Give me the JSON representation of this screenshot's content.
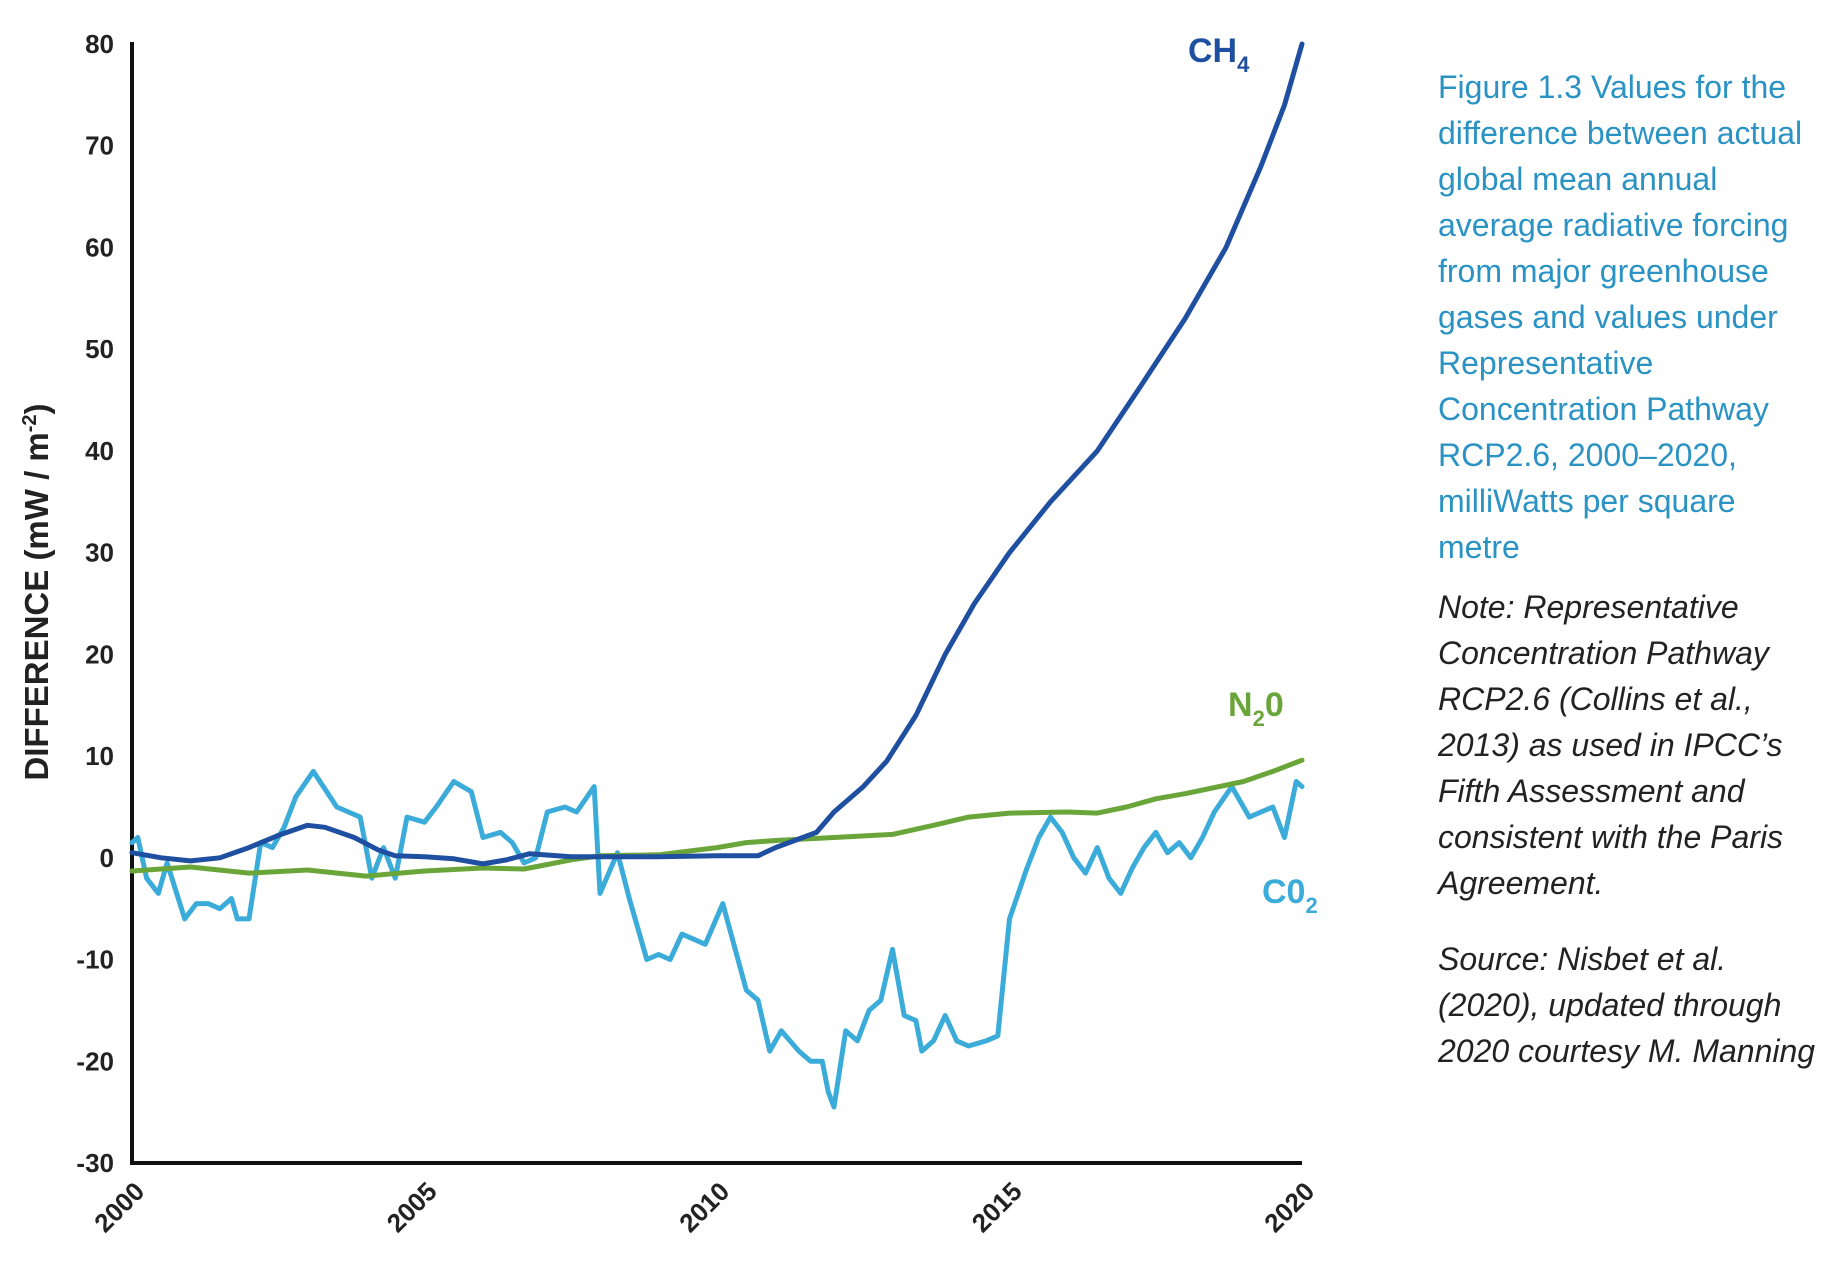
{
  "colors": {
    "ch4": "#1f4fa0",
    "n2o": "#6aa539",
    "co2": "#3bacd9",
    "caption": "#2a93c4",
    "axis": "#111111"
  },
  "caption": {
    "title": "Figure 1.3 Values for the difference between actual global mean annual average radiative forcing from major greenhouse gases and values under Representative Concentration Pathway RCP2.6, 2000–2020, milliWatts per square metre",
    "note": "Note: Representative Concentration Pathway RCP2.6 (Collins et al., 2013) as used in IPCC’s Fifth Assessment and consistent with the Paris Agreement.",
    "source": "Source: Nisbet et al. (2020), updated through 2020 courtesy M. Manning"
  },
  "chart_data": {
    "type": "line",
    "ylabel": "DIFFERENCE (mW / m",
    "ylabel_sup": "-2",
    "ylabel_close": ")",
    "xlim": [
      2000,
      2020
    ],
    "ylim": [
      -30,
      80
    ],
    "xticks": [
      "2000",
      "2005",
      "2010",
      "2015",
      "2020"
    ],
    "yticks": [
      "80",
      "70",
      "60",
      "50",
      "40",
      "30",
      "20",
      "10",
      "0",
      "-10",
      "-20",
      "-30"
    ],
    "grid": false,
    "series": [
      {
        "name": "CH",
        "sub": "4",
        "color": "#1f4fa0",
        "points": [
          [
            2000,
            0.5
          ],
          [
            2000.5,
            0
          ],
          [
            2001,
            -0.3
          ],
          [
            2001.5,
            0
          ],
          [
            2002,
            1
          ],
          [
            2002.5,
            2.2
          ],
          [
            2003,
            3.2
          ],
          [
            2003.3,
            3
          ],
          [
            2003.8,
            2
          ],
          [
            2004.2,
            0.8
          ],
          [
            2004.5,
            0.2
          ],
          [
            2005,
            0.1
          ],
          [
            2005.5,
            -0.1
          ],
          [
            2006,
            -0.6
          ],
          [
            2006.4,
            -0.2
          ],
          [
            2006.8,
            0.4
          ],
          [
            2007.5,
            0.1
          ],
          [
            2008,
            0.1
          ],
          [
            2009,
            0.1
          ],
          [
            2010,
            0.2
          ],
          [
            2010.7,
            0.2
          ],
          [
            2011,
            1
          ],
          [
            2011.7,
            2.5
          ],
          [
            2012,
            4.5
          ],
          [
            2012.5,
            7
          ],
          [
            2012.9,
            9.5
          ],
          [
            2013.4,
            14
          ],
          [
            2013.9,
            20
          ],
          [
            2014.4,
            25
          ],
          [
            2015,
            30
          ],
          [
            2015.7,
            35
          ],
          [
            2016.5,
            40
          ],
          [
            2017.2,
            46
          ],
          [
            2018,
            53
          ],
          [
            2018.7,
            60
          ],
          [
            2019.3,
            68
          ],
          [
            2019.7,
            74
          ],
          [
            2020,
            80
          ]
        ]
      },
      {
        "name": "N",
        "sub": "2",
        "suffix": "0",
        "color": "#6aa539",
        "points": [
          [
            2000,
            -1.3
          ],
          [
            2001,
            -0.9
          ],
          [
            2002,
            -1.5
          ],
          [
            2003,
            -1.2
          ],
          [
            2004,
            -1.8
          ],
          [
            2005,
            -1.3
          ],
          [
            2006,
            -1
          ],
          [
            2006.7,
            -1.1
          ],
          [
            2007.5,
            -0.2
          ],
          [
            2008,
            0.2
          ],
          [
            2009,
            0.3
          ],
          [
            2010,
            1
          ],
          [
            2010.5,
            1.5
          ],
          [
            2011,
            1.7
          ],
          [
            2012,
            2
          ],
          [
            2013,
            2.3
          ],
          [
            2013.7,
            3.2
          ],
          [
            2014.3,
            4
          ],
          [
            2015,
            4.4
          ],
          [
            2016,
            4.5
          ],
          [
            2016.5,
            4.4
          ],
          [
            2017,
            5
          ],
          [
            2017.5,
            5.8
          ],
          [
            2018,
            6.3
          ],
          [
            2019,
            7.5
          ],
          [
            2019.5,
            8.5
          ],
          [
            2020,
            9.6
          ]
        ]
      },
      {
        "name": "C0",
        "sub": "2",
        "color": "#3bacd9",
        "points": [
          [
            2000,
            1.5
          ],
          [
            2000.1,
            2
          ],
          [
            2000.25,
            -2
          ],
          [
            2000.45,
            -3.5
          ],
          [
            2000.6,
            -0.5
          ],
          [
            2000.9,
            -6
          ],
          [
            2001.1,
            -4.5
          ],
          [
            2001.3,
            -4.5
          ],
          [
            2001.5,
            -5
          ],
          [
            2001.7,
            -4
          ],
          [
            2001.8,
            -6
          ],
          [
            2002,
            -6
          ],
          [
            2002.2,
            1.5
          ],
          [
            2002.4,
            1
          ],
          [
            2002.6,
            3
          ],
          [
            2002.8,
            6
          ],
          [
            2003.1,
            8.5
          ],
          [
            2003.5,
            5
          ],
          [
            2003.9,
            4
          ],
          [
            2004.1,
            -2
          ],
          [
            2004.3,
            1
          ],
          [
            2004.5,
            -2
          ],
          [
            2004.7,
            4
          ],
          [
            2005,
            3.5
          ],
          [
            2005.2,
            5
          ],
          [
            2005.5,
            7.5
          ],
          [
            2005.8,
            6.5
          ],
          [
            2006,
            2
          ],
          [
            2006.3,
            2.5
          ],
          [
            2006.5,
            1.5
          ],
          [
            2006.7,
            -0.5
          ],
          [
            2006.9,
            0
          ],
          [
            2007.1,
            4.5
          ],
          [
            2007.4,
            5
          ],
          [
            2007.6,
            4.5
          ],
          [
            2007.9,
            7
          ],
          [
            2008,
            -3.5
          ],
          [
            2008.3,
            0.5
          ],
          [
            2008.5,
            -4
          ],
          [
            2008.8,
            -10
          ],
          [
            2009,
            -9.5
          ],
          [
            2009.2,
            -10
          ],
          [
            2009.4,
            -7.5
          ],
          [
            2009.6,
            -8
          ],
          [
            2009.8,
            -8.5
          ],
          [
            2010.1,
            -4.5
          ],
          [
            2010.5,
            -13
          ],
          [
            2010.7,
            -14
          ],
          [
            2010.9,
            -19
          ],
          [
            2011.1,
            -17
          ],
          [
            2011.4,
            -19
          ],
          [
            2011.6,
            -20
          ],
          [
            2011.8,
            -20
          ],
          [
            2011.9,
            -23
          ],
          [
            2012,
            -24.5
          ],
          [
            2012.2,
            -17
          ],
          [
            2012.4,
            -18
          ],
          [
            2012.6,
            -15
          ],
          [
            2012.8,
            -14
          ],
          [
            2013,
            -9
          ],
          [
            2013.2,
            -15.5
          ],
          [
            2013.4,
            -16
          ],
          [
            2013.5,
            -19
          ],
          [
            2013.7,
            -18
          ],
          [
            2013.9,
            -15.5
          ],
          [
            2014.1,
            -18
          ],
          [
            2014.3,
            -18.5
          ],
          [
            2014.6,
            -18
          ],
          [
            2014.8,
            -17.5
          ],
          [
            2015,
            -6
          ],
          [
            2015.3,
            -1
          ],
          [
            2015.5,
            2
          ],
          [
            2015.7,
            4
          ],
          [
            2015.9,
            2.5
          ],
          [
            2016.1,
            0
          ],
          [
            2016.3,
            -1.5
          ],
          [
            2016.5,
            1
          ],
          [
            2016.7,
            -2
          ],
          [
            2016.9,
            -3.5
          ],
          [
            2017.1,
            -1
          ],
          [
            2017.3,
            1
          ],
          [
            2017.5,
            2.5
          ],
          [
            2017.7,
            0.5
          ],
          [
            2017.9,
            1.5
          ],
          [
            2018.1,
            0
          ],
          [
            2018.3,
            2
          ],
          [
            2018.5,
            4.5
          ],
          [
            2018.8,
            7
          ],
          [
            2019.1,
            4
          ],
          [
            2019.3,
            4.5
          ],
          [
            2019.5,
            5
          ],
          [
            2019.7,
            2
          ],
          [
            2019.9,
            7.5
          ],
          [
            2020,
            7
          ]
        ]
      }
    ]
  }
}
